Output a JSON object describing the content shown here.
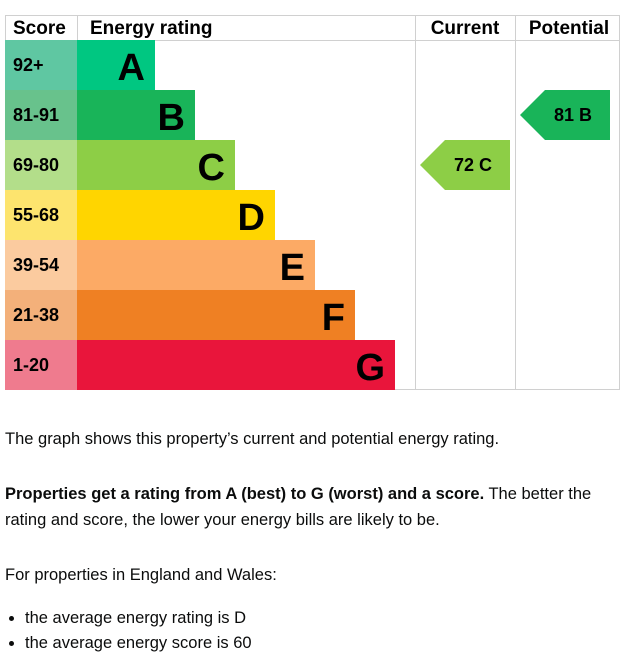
{
  "chart_data": {
    "type": "bar",
    "headers": {
      "score": "Score",
      "rating": "Energy rating",
      "current": "Current",
      "potential": "Potential"
    },
    "bands": [
      {
        "letter": "A",
        "range": "92+",
        "color": "#00c781",
        "score_color": "#5fc7a2"
      },
      {
        "letter": "B",
        "range": "81-91",
        "color": "#19b459",
        "score_color": "#68c28c"
      },
      {
        "letter": "C",
        "range": "69-80",
        "color": "#8dce46",
        "score_color": "#b3de8a"
      },
      {
        "letter": "D",
        "range": "55-68",
        "color": "#ffd500",
        "score_color": "#fde46e"
      },
      {
        "letter": "E",
        "range": "39-54",
        "color": "#fcaa65",
        "score_color": "#fbcb9f"
      },
      {
        "letter": "F",
        "range": "21-38",
        "color": "#ef8023",
        "score_color": "#f3b07a"
      },
      {
        "letter": "G",
        "range": "1-20",
        "color": "#e9153b",
        "score_color": "#ef7b8e"
      }
    ],
    "current": {
      "score": 72,
      "letter": "C",
      "label": "72  C"
    },
    "potential": {
      "score": 81,
      "letter": "B",
      "label": "81  B"
    }
  },
  "text": {
    "intro": "The graph shows this property’s current and potential energy rating.",
    "bold": "Properties get a rating from A (best) to G (worst) and a score.",
    "rest": " The better the rating and score, the lower your energy bills are likely to be.",
    "region": "For properties in England and Wales:",
    "bullets": [
      "the average energy rating is D",
      "the average energy score is 60"
    ]
  }
}
